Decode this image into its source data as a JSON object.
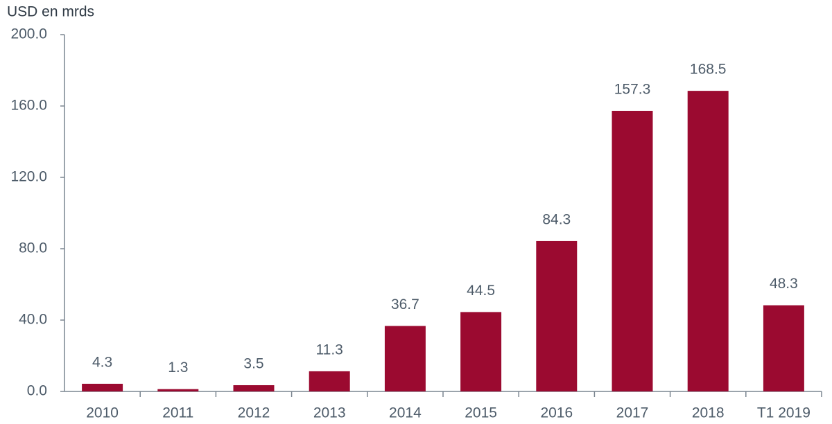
{
  "chart_data": {
    "type": "bar",
    "y_axis_label": "USD en mrds",
    "categories": [
      "2010",
      "2011",
      "2012",
      "2013",
      "2014",
      "2015",
      "2016",
      "2017",
      "2018",
      "T1 2019"
    ],
    "values": [
      4.3,
      1.3,
      3.5,
      11.3,
      36.7,
      44.5,
      84.3,
      157.3,
      168.5,
      48.3
    ],
    "color": "#9b0a30",
    "ylim": [
      0,
      200
    ],
    "yticks": [
      {
        "value": 0,
        "label": "0.0"
      },
      {
        "value": 40,
        "label": "40.0"
      },
      {
        "value": 80,
        "label": "80.0"
      },
      {
        "value": 120,
        "label": "120.0"
      },
      {
        "value": 160,
        "label": "160.0"
      },
      {
        "value": 200,
        "label": "200.0"
      }
    ]
  }
}
